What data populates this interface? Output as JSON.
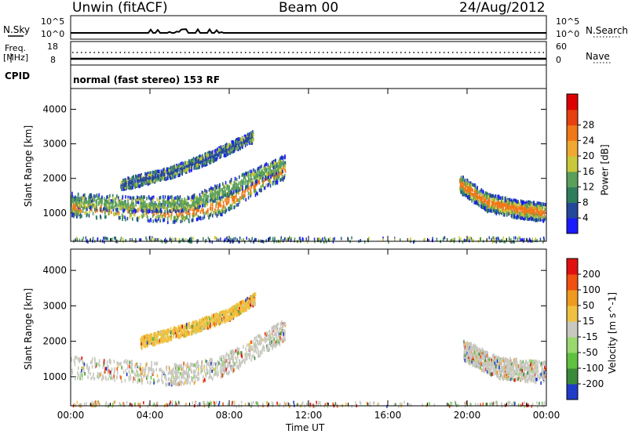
{
  "header": {
    "station": "Unwin (fitACF)",
    "beam": "Beam 00",
    "date": "24/Aug/2012"
  },
  "strips": {
    "nsky_label": "N.Sky",
    "nsky_top": "10^5",
    "nsky_bottom": "10^0",
    "nsearch_label": "N.Search",
    "nsearch_top": "10^5",
    "nsearch_bottom": "10^0",
    "freq_label": "Freq.",
    "freq_unit": "[MHz]",
    "freq_top": "18",
    "freq_bottom": "8",
    "nave_label": "Nave",
    "nave_top": "60",
    "nave_bottom": "0",
    "cpid_label": "CPID",
    "cpid_text": "normal (fast stereo) 153 RF"
  },
  "chart_data": [
    {
      "type": "heatmap",
      "panel": "power",
      "ylabel": "Slant Range [km]",
      "yticks": [
        1000,
        2000,
        3000,
        4000
      ],
      "ylim": [
        180,
        4600
      ],
      "colorbar_label": "Power [dB]",
      "colorbar_ticks": [
        "4",
        "8",
        "12",
        "16",
        "20",
        "24",
        "28"
      ],
      "colorbar_colors": [
        "#1a1aff",
        "#24489a",
        "#2e7e5e",
        "#5aa05a",
        "#c8c83a",
        "#f0a830",
        "#f07818",
        "#e84010",
        "#dd0000"
      ],
      "bands": [
        {
          "x": [
            0,
            0.5,
            3,
            5,
            6,
            7.5,
            8.5,
            10,
            10.8
          ],
          "y": [
            1250,
            1200,
            1120,
            1050,
            1080,
            1250,
            1550,
            2100,
            2300
          ],
          "width": 280,
          "color": "#f07818"
        },
        {
          "x": [
            0,
            3,
            6,
            8.5,
            10.8
          ],
          "y": [
            1400,
            1300,
            1300,
            1900,
            2500
          ],
          "width": 220,
          "color": "#5aa05a"
        },
        {
          "x": [
            2.5,
            5,
            7,
            9.2
          ],
          "y": [
            1850,
            2200,
            2650,
            3250
          ],
          "width": 160,
          "color": "#24489a"
        },
        {
          "x": [
            19.6,
            21,
            22.5,
            24
          ],
          "y": [
            1900,
            1350,
            1150,
            1050
          ],
          "width": 260,
          "color": "#f07818"
        }
      ]
    },
    {
      "type": "heatmap",
      "panel": "velocity",
      "xlabel": "Time UT",
      "xticks": [
        "00:00",
        "04:00",
        "08:00",
        "12:00",
        "16:00",
        "20:00",
        "00:00"
      ],
      "ylabel": "Slant Range [km]",
      "yticks": [
        1000,
        2000,
        3000,
        4000
      ],
      "ylim": [
        180,
        4600
      ],
      "colorbar_label": "Velocity [m s^-1]",
      "colorbar_ticks": [
        "200",
        "100",
        "50",
        "15",
        "-15",
        "-50",
        "-100",
        "-200"
      ],
      "colorbar_colors": [
        "#1e3cc8",
        "#3a8a3a",
        "#60c040",
        "#9ad870",
        "#c8c8c0",
        "#f0c040",
        "#f09a20",
        "#f05010",
        "#e01010"
      ],
      "bands": [
        {
          "x": [
            0,
            3,
            5,
            6,
            7.5,
            8.5,
            10,
            10.8
          ],
          "y": [
            1300,
            1200,
            1100,
            1150,
            1300,
            1600,
            2100,
            2350
          ],
          "width": 300,
          "color": "#c8c8c0"
        },
        {
          "x": [
            3.5,
            6,
            8,
            9.3
          ],
          "y": [
            2000,
            2400,
            2800,
            3250
          ],
          "width": 160,
          "color": "#f0c040"
        },
        {
          "x": [
            19.8,
            21.5,
            24
          ],
          "y": [
            1800,
            1300,
            1150
          ],
          "width": 300,
          "color": "#c8c8c0"
        }
      ]
    }
  ]
}
